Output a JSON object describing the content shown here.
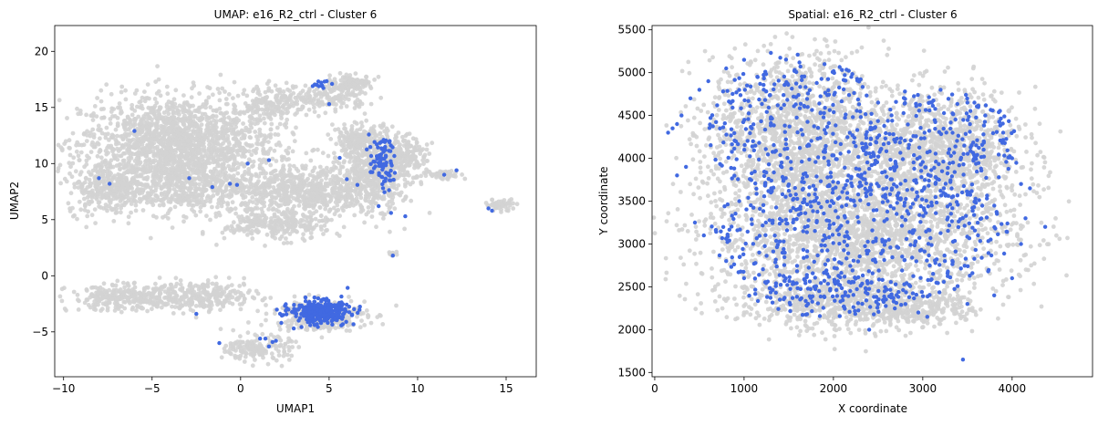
{
  "chart_data": [
    {
      "type": "scatter",
      "title": "UMAP: e16_R2_ctrl - Cluster 6",
      "xlabel": "UMAP1",
      "ylabel": "UMAP2",
      "xlim": [
        -10.5,
        16.7
      ],
      "ylim": [
        -9,
        22.3
      ],
      "xticks": [
        -10,
        -5,
        0,
        5,
        10,
        15
      ],
      "yticks": [
        -5,
        0,
        5,
        10,
        15,
        20
      ],
      "grid": false,
      "colors": {
        "background_cells": "#d3d3d3",
        "highlight": "#4169e1"
      },
      "regions": [
        {
          "cx": -3.5,
          "cy": 11.8,
          "rx": 5.5,
          "ry": 4.2,
          "n": 1700
        },
        {
          "cx": -7.5,
          "cy": 7.8,
          "rx": 2.3,
          "ry": 2.3,
          "n": 300
        },
        {
          "cx": -3.5,
          "cy": 8.0,
          "rx": 3.5,
          "ry": 2.5,
          "n": 420
        },
        {
          "cx": 2.0,
          "cy": 15.5,
          "rx": 1.8,
          "ry": 1.5,
          "n": 160
        },
        {
          "cx": 3.5,
          "cy": 7.5,
          "rx": 4.5,
          "ry": 2.2,
          "n": 700
        },
        {
          "cx": 2.0,
          "cy": 4.5,
          "rx": 3.0,
          "ry": 1.3,
          "n": 260
        },
        {
          "cx": 7.5,
          "cy": 9.5,
          "rx": 1.6,
          "ry": 3.5,
          "n": 420
        },
        {
          "cx": 9.0,
          "cy": 10.5,
          "rx": 1.5,
          "ry": 2.0,
          "n": 220
        },
        {
          "cx": 6.5,
          "cy": 12.0,
          "rx": 1.3,
          "ry": 1.5,
          "n": 150
        },
        {
          "cx": 11.5,
          "cy": 9.0,
          "rx": 1.2,
          "ry": 0.4,
          "n": 50
        },
        {
          "cx": 6.3,
          "cy": 17.2,
          "rx": 1.2,
          "ry": 0.6,
          "n": 110
        },
        {
          "cx": 5.2,
          "cy": 15.9,
          "rx": 2.0,
          "ry": 1.2,
          "n": 150
        },
        {
          "cx": 14.7,
          "cy": 6.3,
          "rx": 0.9,
          "ry": 0.5,
          "n": 50
        },
        {
          "cx": -6.5,
          "cy": -2.0,
          "rx": 3.2,
          "ry": 1.1,
          "n": 300
        },
        {
          "cx": -2.0,
          "cy": -1.8,
          "rx": 3.0,
          "ry": 1.3,
          "n": 260
        },
        {
          "cx": 4.5,
          "cy": -3.5,
          "rx": 2.6,
          "ry": 1.4,
          "n": 320
        },
        {
          "cx": 1.0,
          "cy": -6.5,
          "rx": 1.8,
          "ry": 1.1,
          "n": 160
        },
        {
          "cx": 8.6,
          "cy": 2.0,
          "rx": 0.3,
          "ry": 0.3,
          "n": 10
        }
      ],
      "highlight_clusters": [
        {
          "cx": 4.5,
          "cy": -3.2,
          "rx": 1.8,
          "ry": 1.1,
          "n": 340
        },
        {
          "cx": 8.0,
          "cy": 10.0,
          "rx": 0.8,
          "ry": 2.5,
          "n": 80
        },
        {
          "cx": 4.5,
          "cy": 17.1,
          "rx": 0.6,
          "ry": 0.4,
          "n": 12
        }
      ],
      "highlight_points": [
        [
          -8.0,
          8.7
        ],
        [
          -7.4,
          8.2
        ],
        [
          -6.0,
          12.9
        ],
        [
          -2.9,
          8.7
        ],
        [
          -1.6,
          7.9
        ],
        [
          -0.6,
          8.2
        ],
        [
          -0.2,
          8.1
        ],
        [
          0.4,
          10.0
        ],
        [
          1.6,
          10.3
        ],
        [
          5.0,
          15.3
        ],
        [
          5.6,
          10.5
        ],
        [
          6.0,
          8.6
        ],
        [
          6.6,
          8.1
        ],
        [
          7.8,
          6.2
        ],
        [
          8.5,
          5.6
        ],
        [
          9.3,
          5.3
        ],
        [
          12.2,
          9.4
        ],
        [
          11.5,
          9.0
        ],
        [
          14.0,
          6.0
        ],
        [
          14.2,
          5.8
        ],
        [
          8.6,
          1.8
        ],
        [
          -2.5,
          -3.4
        ],
        [
          1.1,
          -5.6
        ],
        [
          1.4,
          -5.6
        ],
        [
          1.6,
          -6.3
        ],
        [
          1.8,
          -5.9
        ],
        [
          2.0,
          -5.8
        ],
        [
          -1.2,
          -6.0
        ],
        [
          2.3,
          -4.2
        ],
        [
          3.0,
          -4.7
        ],
        [
          2.4,
          -3.5
        ]
      ]
    },
    {
      "type": "scatter",
      "title": "Spatial: e16_R2_ctrl - Cluster 6",
      "xlabel": "X coordinate",
      "ylabel": "Y coordinate",
      "xlim": [
        -30,
        4900
      ],
      "ylim": [
        1450,
        5550
      ],
      "xticks": [
        0,
        1000,
        2000,
        3000,
        4000
      ],
      "yticks": [
        1500,
        2000,
        2500,
        3000,
        3500,
        4000,
        4500,
        5000,
        5500
      ],
      "grid": false,
      "colors": {
        "background_cells": "#d3d3d3",
        "highlight": "#4169e1"
      },
      "regions": [
        {
          "cx": 1600,
          "cy": 4300,
          "rx": 1000,
          "ry": 900,
          "n": 1500
        },
        {
          "cx": 3200,
          "cy": 4100,
          "rx": 900,
          "ry": 700,
          "n": 1100
        },
        {
          "cx": 2300,
          "cy": 3100,
          "rx": 1700,
          "ry": 800,
          "n": 2200
        },
        {
          "cx": 2000,
          "cy": 2300,
          "rx": 1100,
          "ry": 300,
          "n": 500
        },
        {
          "cx": 3000,
          "cy": 2250,
          "rx": 600,
          "ry": 200,
          "n": 200
        }
      ],
      "highlight_regions": [
        {
          "cx": 1600,
          "cy": 4300,
          "rx": 1000,
          "ry": 900,
          "n": 330
        },
        {
          "cx": 3200,
          "cy": 4100,
          "rx": 900,
          "ry": 700,
          "n": 260
        },
        {
          "cx": 2300,
          "cy": 3100,
          "rx": 1700,
          "ry": 800,
          "n": 520
        },
        {
          "cx": 2000,
          "cy": 2400,
          "rx": 1000,
          "ry": 250,
          "n": 120
        }
      ],
      "highlight_points": [
        [
          150,
          4300
        ],
        [
          200,
          4350
        ],
        [
          250,
          4400
        ],
        [
          300,
          4500
        ],
        [
          400,
          4700
        ],
        [
          500,
          4800
        ],
        [
          600,
          4900
        ],
        [
          800,
          5050
        ],
        [
          1000,
          5150
        ],
        [
          1300,
          5230
        ],
        [
          1600,
          5210
        ],
        [
          1900,
          5100
        ],
        [
          2200,
          4950
        ],
        [
          2500,
          4650
        ],
        [
          2800,
          4780
        ],
        [
          3200,
          4800
        ],
        [
          3500,
          4650
        ],
        [
          3700,
          4500
        ],
        [
          3900,
          4300
        ],
        [
          4000,
          4000
        ],
        [
          4100,
          3700
        ],
        [
          4200,
          3650
        ],
        [
          4370,
          3200
        ],
        [
          4150,
          3300
        ],
        [
          4100,
          3000
        ],
        [
          4000,
          2600
        ],
        [
          3800,
          2400
        ],
        [
          3500,
          2300
        ],
        [
          3050,
          2150
        ],
        [
          2950,
          2200
        ],
        [
          2400,
          2000
        ],
        [
          1700,
          2280
        ],
        [
          1400,
          2350
        ],
        [
          1000,
          2600
        ],
        [
          800,
          2800
        ],
        [
          550,
          3100
        ],
        [
          450,
          3250
        ],
        [
          350,
          3900
        ],
        [
          250,
          3800
        ],
        [
          3450,
          1650
        ]
      ]
    }
  ]
}
